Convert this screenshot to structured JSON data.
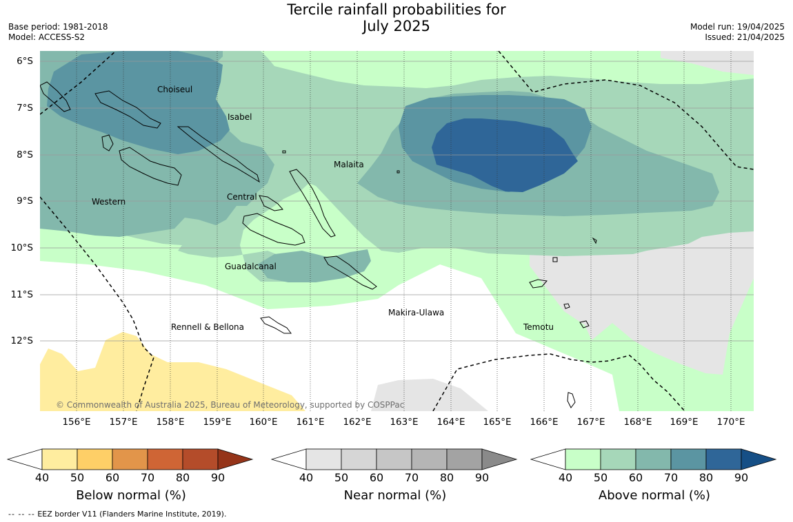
{
  "title": {
    "line1": "Tercile rainfall probabilities for",
    "line2": "July 2025"
  },
  "meta": {
    "base_period": "Base period: 1981-2018",
    "model": "Model: ACCESS-S2",
    "model_run": "Model run: 19/04/2025",
    "issued": "Issued: 21/04/2025"
  },
  "axes": {
    "lat_labels": [
      "6°S",
      "7°S",
      "8°S",
      "9°S",
      "10°S",
      "11°S",
      "12°S"
    ],
    "lon_labels": [
      "156°E",
      "157°E",
      "158°E",
      "159°E",
      "160°E",
      "161°E",
      "162°E",
      "163°E",
      "164°E",
      "165°E",
      "166°E",
      "167°E",
      "168°E",
      "169°E",
      "170°E"
    ]
  },
  "regions": [
    "Choiseul",
    "Isabel",
    "Malaita",
    "Western",
    "Central",
    "Guadalcanal",
    "Makira-Ulawa",
    "Rennell & Bellona",
    "Temotu"
  ],
  "copyright": "© Commonwealth of Australia 2025, Bureau of Meteorology, supported by COSPPac",
  "colorbars": [
    {
      "title": "Below normal (%)",
      "ticks": [
        "40",
        "50",
        "60",
        "70",
        "80",
        "90"
      ],
      "colors": [
        "#ffffff",
        "#ffed9f",
        "#fecf67",
        "#e2954a",
        "#cf6535",
        "#b44c2a",
        "#953419"
      ]
    },
    {
      "title": "Near normal (%)",
      "ticks": [
        "40",
        "50",
        "60",
        "70",
        "80",
        "90"
      ],
      "colors": [
        "#ffffff",
        "#e5e5e5",
        "#d6d6d6",
        "#c6c6c6",
        "#b5b5b5",
        "#a3a3a3",
        "#8a8a8a"
      ]
    },
    {
      "title": "Above normal (%)",
      "ticks": [
        "40",
        "50",
        "60",
        "70",
        "80",
        "90"
      ],
      "colors": [
        "#ffffff",
        "#c8ffc8",
        "#a6d7b9",
        "#83b8ac",
        "#5b95a2",
        "#2f6698",
        "#164f86"
      ]
    }
  ],
  "footer": {
    "dashes": "-- -- --",
    "text": "EEZ border V11 (Flanders Marine Institute, 2019)."
  }
}
